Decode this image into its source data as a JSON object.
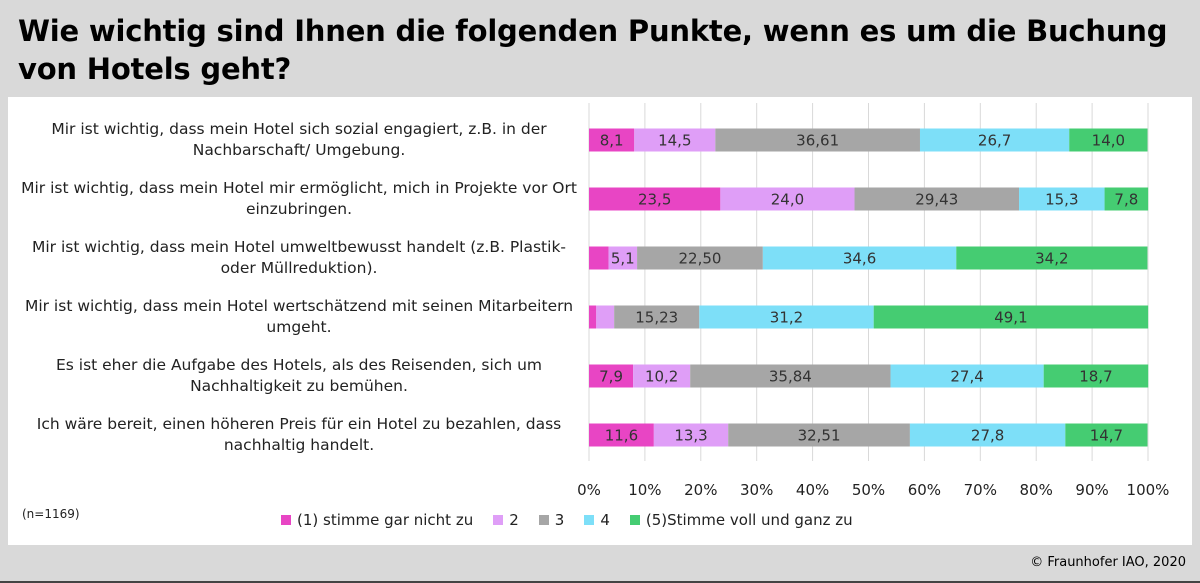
{
  "title": "Wie wichtig sind Ihnen die folgenden Punkte, wenn es um die Buchung von Hotels geht?",
  "sample_note": "(n=1169)",
  "copyright": "© Fraunhofer IAO, 2020",
  "chart_data": {
    "type": "bar",
    "orientation": "horizontal",
    "stacked": true,
    "percent_stacked": true,
    "categories": [
      "Mir ist wichtig, dass mein Hotel sich sozial engagiert, z.B. in der Nachbarschaft/ Umgebung.",
      "Mir ist wichtig, dass mein Hotel mir ermöglicht, mich in Projekte vor Ort einzubringen.",
      "Mir ist wichtig, dass mein Hotel umweltbewusst handelt (z.B. Plastik- oder Müllreduktion).",
      "Mir ist wichtig, dass mein Hotel wertschätzend mit seinen Mitarbeitern umgeht.",
      "Es ist eher die Aufgabe des Hotels, als des Reisenden, sich um Nachhaltigkeit zu bemühen.",
      "Ich wäre bereit, einen höheren Preis für ein Hotel zu bezahlen, dass nachhaltig handelt."
    ],
    "series": [
      {
        "name": "(1) stimme gar nicht zu",
        "color": "#e845c4",
        "values": [
          8.1,
          23.5,
          3.5,
          1.3,
          7.9,
          11.6
        ],
        "labels": [
          "8,1",
          "23,5",
          "",
          "",
          "7,9",
          "11,6"
        ]
      },
      {
        "name": "2",
        "color": "#df9ef7",
        "values": [
          14.5,
          24.0,
          5.1,
          3.2,
          10.2,
          13.3
        ],
        "labels": [
          "14,5",
          "24,0",
          "5,1",
          "",
          "10,2",
          "13,3"
        ]
      },
      {
        "name": "3",
        "color": "#a6a6a6",
        "values": [
          36.61,
          29.43,
          22.5,
          15.23,
          35.84,
          32.51
        ],
        "labels": [
          "36,61",
          "29,43",
          "22,50",
          "15,23",
          "35,84",
          "32,51"
        ]
      },
      {
        "name": "4",
        "color": "#7ddff8",
        "values": [
          26.7,
          15.3,
          34.6,
          31.2,
          27.4,
          27.8
        ],
        "labels": [
          "26,7",
          "15,3",
          "34,6",
          "31,2",
          "27,4",
          "27,8"
        ]
      },
      {
        "name": "(5)Stimme voll und ganz zu",
        "color": "#45cc72",
        "values": [
          14.0,
          7.8,
          34.2,
          49.1,
          18.7,
          14.7
        ],
        "labels": [
          "14,0",
          "7,8",
          "34,2",
          "49,1",
          "18,7",
          "14,7"
        ]
      }
    ],
    "xlim": [
      0,
      100
    ],
    "x_ticks": [
      "0%",
      "10%",
      "20%",
      "30%",
      "40%",
      "50%",
      "60%",
      "70%",
      "80%",
      "90%",
      "100%"
    ],
    "grid": true,
    "legend_position": "bottom"
  }
}
